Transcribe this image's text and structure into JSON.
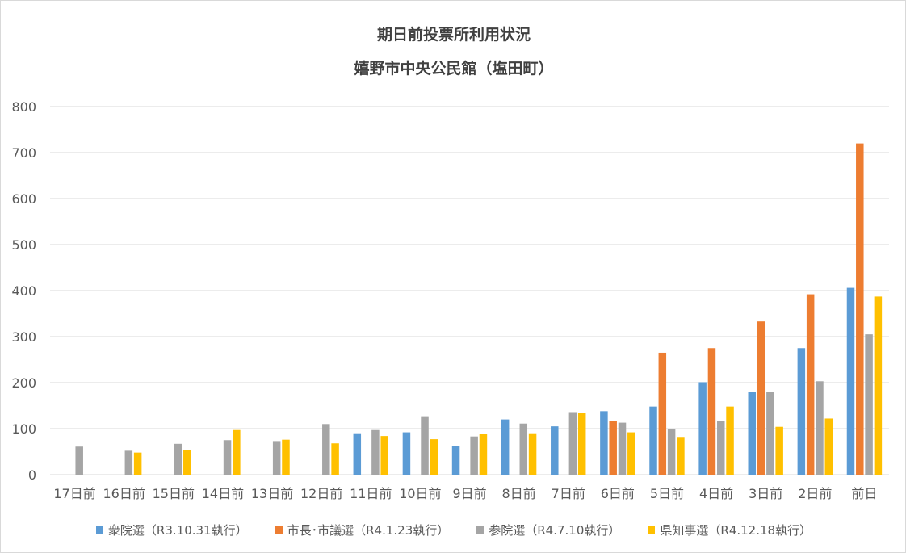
{
  "chart_data": {
    "type": "bar",
    "title": "期日前投票所利用状況",
    "subtitle": "嬉野市中央公民館（塩田町）",
    "ylim": [
      0,
      800
    ],
    "yticks": [
      0,
      100,
      200,
      300,
      400,
      500,
      600,
      700,
      800
    ],
    "grid": true,
    "legend_position": "bottom",
    "categories": [
      "17日前",
      "16日前",
      "15日前",
      "14日前",
      "13日前",
      "12日前",
      "11日前",
      "10日前",
      "9日前",
      "8日前",
      "7日前",
      "6日前",
      "5日前",
      "4日前",
      "3日前",
      "2日前",
      "前日"
    ],
    "series": [
      {
        "name": "衆院選（R3.10.31執行）",
        "color": "#5b9bd5",
        "values": [
          null,
          null,
          null,
          null,
          null,
          null,
          90,
          92,
          62,
          120,
          105,
          138,
          148,
          201,
          180,
          275,
          406
        ]
      },
      {
        "name": "市長･市議選（R4.1.23執行）",
        "color": "#ed7d31",
        "values": [
          null,
          null,
          null,
          null,
          null,
          null,
          null,
          null,
          null,
          null,
          null,
          116,
          265,
          275,
          333,
          392,
          720
        ]
      },
      {
        "name": "参院選（R4.7.10執行）",
        "color": "#a5a5a5",
        "values": [
          61,
          52,
          67,
          75,
          73,
          110,
          97,
          127,
          83,
          111,
          136,
          113,
          99,
          117,
          180,
          203,
          305
        ]
      },
      {
        "name": "県知事選（R4.12.18執行）",
        "color": "#ffc000",
        "values": [
          null,
          48,
          54,
          97,
          76,
          68,
          84,
          77,
          89,
          90,
          134,
          92,
          82,
          148,
          104,
          122,
          387
        ]
      }
    ]
  }
}
